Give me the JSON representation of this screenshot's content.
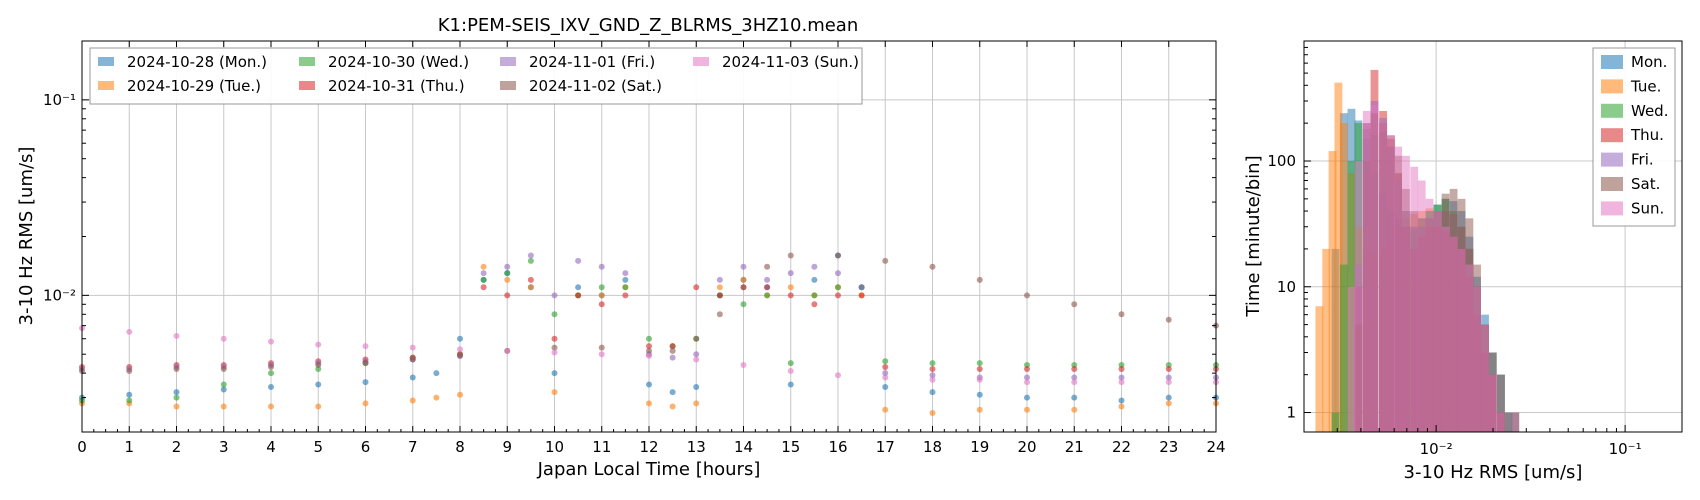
{
  "figure_title": "K1:PEM-SEIS_IXV_GND_Z_BLRMS_3HZ10.mean",
  "colors": {
    "Mon": "#1f77b4",
    "Tue": "#ff7f0e",
    "Wed": "#2ca02c",
    "Thu": "#d62728",
    "Fri": "#9467bd",
    "Sat": "#8c564b",
    "Sun": "#e377c2"
  },
  "chart_data": [
    {
      "type": "scatter",
      "title": "K1:PEM-SEIS_IXV_GND_Z_BLRMS_3HZ10.mean",
      "xlabel": "Japan Local Time [hours]",
      "ylabel": "3-10 Hz RMS [um/s]",
      "xlim": [
        0,
        24
      ],
      "ylim": [
        0.002,
        0.2
      ],
      "yscale": "log",
      "xticks": [
        "0",
        "1",
        "2",
        "3",
        "4",
        "5",
        "6",
        "7",
        "8",
        "9",
        "10",
        "11",
        "12",
        "13",
        "14",
        "15",
        "16",
        "17",
        "18",
        "19",
        "20",
        "21",
        "22",
        "23",
        "24"
      ],
      "yticks": [
        {
          "value": 0.01,
          "label": "10⁻²"
        },
        {
          "value": 0.1,
          "label": "10⁻¹"
        }
      ],
      "grid": true,
      "legend_position": "top-left",
      "series": [
        {
          "name": "2024-10-28 (Mon.)",
          "key": "Mon",
          "x": [
            0,
            1,
            2,
            3,
            4,
            5,
            6,
            7,
            7.5,
            8,
            8.5,
            9,
            9.5,
            10,
            10.5,
            11,
            11.5,
            12,
            12.5,
            13,
            13.5,
            14,
            14.5,
            15,
            15.5,
            16,
            16.5,
            17,
            18,
            19,
            20,
            21,
            22,
            23,
            24
          ],
          "y": [
            0.003,
            0.0031,
            0.0032,
            0.0033,
            0.0034,
            0.0035,
            0.0036,
            0.0038,
            0.004,
            0.006,
            0.012,
            0.013,
            0.011,
            0.004,
            0.011,
            0.01,
            0.012,
            0.0035,
            0.0032,
            0.0034,
            0.01,
            0.012,
            0.011,
            0.0035,
            0.012,
            0.016,
            0.011,
            0.0034,
            0.0032,
            0.0031,
            0.003,
            0.003,
            0.0029,
            0.003,
            0.003
          ]
        },
        {
          "name": "2024-10-29 (Tue.)",
          "key": "Tue",
          "x": [
            0,
            1,
            2,
            3,
            4,
            5,
            6,
            7,
            7.5,
            8,
            8.5,
            9,
            9.5,
            10,
            10.5,
            11,
            11.5,
            12,
            12.5,
            13,
            13.5,
            14,
            14.5,
            15,
            15.5,
            16,
            16.5,
            17,
            18,
            19,
            20,
            21,
            22,
            23,
            24
          ],
          "y": [
            0.0028,
            0.0028,
            0.0027,
            0.0027,
            0.0027,
            0.0027,
            0.0028,
            0.0029,
            0.003,
            0.0031,
            0.014,
            0.012,
            0.011,
            0.0032,
            0.01,
            0.01,
            0.011,
            0.0028,
            0.0027,
            0.0028,
            0.011,
            0.012,
            0.01,
            0.011,
            0.01,
            0.011,
            0.01,
            0.0026,
            0.0025,
            0.0026,
            0.0026,
            0.0026,
            0.0027,
            0.0028,
            0.0028
          ]
        },
        {
          "name": "2024-10-30 (Wed.)",
          "key": "Wed",
          "x": [
            0,
            1,
            2,
            3,
            4,
            5,
            6,
            7,
            8,
            8.5,
            9,
            9.5,
            10,
            10.5,
            11,
            11.5,
            12,
            12.5,
            13,
            13.5,
            14,
            14.5,
            15,
            15.5,
            16,
            16.5,
            17,
            18,
            19,
            20,
            21,
            22,
            23,
            24
          ],
          "y": [
            0.0029,
            0.0029,
            0.003,
            0.0035,
            0.004,
            0.0042,
            0.0045,
            0.0048,
            0.005,
            0.012,
            0.013,
            0.015,
            0.008,
            0.01,
            0.011,
            0.011,
            0.006,
            0.0055,
            0.006,
            0.01,
            0.009,
            0.01,
            0.0045,
            0.01,
            0.011,
            0.011,
            0.0046,
            0.0045,
            0.0045,
            0.0044,
            0.0044,
            0.0044,
            0.0044,
            0.0044
          ]
        },
        {
          "name": "2024-10-31 (Thu.)",
          "key": "Thu",
          "x": [
            0,
            1,
            2,
            3,
            4,
            5,
            6,
            7,
            8,
            8.5,
            9,
            9.5,
            10,
            10.5,
            11,
            11.5,
            12,
            12.5,
            13,
            13.5,
            14,
            14.5,
            15,
            15.5,
            16,
            16.5,
            17,
            18,
            19,
            20,
            21,
            22,
            23,
            24
          ],
          "y": [
            0.0043,
            0.0043,
            0.0044,
            0.0044,
            0.0045,
            0.0046,
            0.0047,
            0.0048,
            0.005,
            0.011,
            0.01,
            0.012,
            0.006,
            0.01,
            0.009,
            0.01,
            0.0055,
            0.0055,
            0.011,
            0.01,
            0.011,
            0.011,
            0.01,
            0.009,
            0.01,
            0.01,
            0.0043,
            0.0042,
            0.0042,
            0.0042,
            0.0042,
            0.0042,
            0.0042,
            0.0042
          ]
        },
        {
          "name": "2024-11-01 (Fri.)",
          "key": "Fri",
          "x": [
            0,
            1,
            2,
            3,
            4,
            5,
            6,
            7,
            8,
            8.5,
            9,
            9.5,
            10,
            10.5,
            11,
            11.5,
            12,
            12.5,
            13,
            13.5,
            14,
            14.5,
            15,
            15.5,
            16,
            16.5,
            17,
            18,
            19,
            20,
            21,
            22,
            23,
            24
          ],
          "y": [
            0.0042,
            0.0042,
            0.0043,
            0.0043,
            0.0044,
            0.0045,
            0.0046,
            0.0047,
            0.0049,
            0.013,
            0.014,
            0.016,
            0.01,
            0.015,
            0.014,
            0.013,
            0.005,
            0.0048,
            0.005,
            0.012,
            0.014,
            0.012,
            0.013,
            0.014,
            0.013,
            0.011,
            0.004,
            0.0039,
            0.0038,
            0.0038,
            0.0038,
            0.0038,
            0.0038,
            0.0038
          ]
        },
        {
          "name": "2024-11-02 (Sat.)",
          "key": "Sat",
          "x": [
            0,
            1,
            2,
            3,
            4,
            5,
            6,
            7,
            8,
            9,
            10,
            11,
            12,
            12.5,
            13,
            13.5,
            14,
            14.5,
            15,
            16,
            17,
            18,
            19,
            20,
            21,
            22,
            23,
            24
          ],
          "y": [
            0.0041,
            0.0041,
            0.0042,
            0.0042,
            0.0043,
            0.0044,
            0.0045,
            0.0047,
            0.0049,
            0.0052,
            0.0054,
            0.0054,
            0.0052,
            0.0052,
            0.006,
            0.008,
            0.011,
            0.014,
            0.016,
            0.016,
            0.015,
            0.014,
            0.012,
            0.01,
            0.009,
            0.008,
            0.0075,
            0.007
          ]
        },
        {
          "name": "2024-11-03 (Sun.)",
          "key": "Sun",
          "x": [
            0,
            1,
            2,
            3,
            4,
            5,
            6,
            7,
            8,
            9,
            10,
            11,
            12,
            13,
            14,
            15,
            16,
            17,
            18,
            19,
            20,
            21,
            22,
            23,
            24
          ],
          "y": [
            0.0068,
            0.0065,
            0.0062,
            0.006,
            0.0058,
            0.0056,
            0.0055,
            0.0054,
            0.0053,
            0.0052,
            0.0051,
            0.005,
            0.0049,
            0.0047,
            0.0044,
            0.0041,
            0.0039,
            0.0038,
            0.0037,
            0.0037,
            0.0036,
            0.0036,
            0.0036,
            0.0036,
            0.0036
          ]
        }
      ]
    },
    {
      "type": "bar",
      "subtype": "histogram",
      "xlabel": "3-10 Hz RMS [um/s]",
      "ylabel": "Time [minute/bin]",
      "xscale": "log",
      "yscale": "log",
      "xlim": [
        0.002,
        0.2
      ],
      "ylim": [
        0.7,
        900
      ],
      "xticks": [
        {
          "value": 0.01,
          "label": "10⁻²"
        },
        {
          "value": 0.1,
          "label": "10⁻¹"
        }
      ],
      "yticks": [
        {
          "value": 1,
          "label": "1"
        },
        {
          "value": 10,
          "label": "10"
        },
        {
          "value": 100,
          "label": "100"
        }
      ],
      "grid": true,
      "legend_position": "top-right",
      "series": [
        {
          "name": "Mon.",
          "key": "Mon",
          "x": [
            0.0028,
            0.0031,
            0.0034,
            0.0037,
            0.0041,
            0.0045,
            0.005,
            0.0055,
            0.006,
            0.0066,
            0.0073,
            0.008,
            0.0088,
            0.0097,
            0.0107,
            0.0118,
            0.013,
            0.0143,
            0.0157,
            0.0173,
            0.019,
            0.021,
            0.023,
            0.025
          ],
          "values": [
            20,
            240,
            260,
            210,
            150,
            80,
            55,
            40,
            35,
            30,
            28,
            30,
            40,
            45,
            50,
            48,
            40,
            25,
            12,
            6,
            3,
            2,
            1,
            1
          ]
        },
        {
          "name": "Tue.",
          "key": "Tue",
          "x": [
            0.0023,
            0.0025,
            0.0027,
            0.0029,
            0.0031,
            0.0034,
            0.0037,
            0.0041,
            0.0045,
            0.005,
            0.0055,
            0.006,
            0.0066,
            0.0073,
            0.008,
            0.0088,
            0.0097,
            0.0107,
            0.0118,
            0.013,
            0.0143,
            0.0157,
            0.0173,
            0.019,
            0.021,
            0.023,
            0.025
          ],
          "values": [
            7,
            20,
            120,
            420,
            200,
            80,
            30,
            20,
            18,
            20,
            25,
            30,
            35,
            38,
            40,
            42,
            40,
            40,
            38,
            30,
            20,
            10,
            5,
            3,
            2,
            1,
            1
          ]
        },
        {
          "name": "Wed.",
          "key": "Wed",
          "x": [
            0.0028,
            0.0031,
            0.0034,
            0.0037,
            0.0041,
            0.0045,
            0.005,
            0.0055,
            0.006,
            0.0066,
            0.0073,
            0.008,
            0.0088,
            0.0097,
            0.0107,
            0.0118,
            0.013,
            0.0143,
            0.0157,
            0.0173,
            0.019,
            0.021,
            0.023
          ],
          "values": [
            1,
            15,
            100,
            200,
            180,
            160,
            170,
            130,
            80,
            40,
            30,
            35,
            40,
            45,
            50,
            40,
            30,
            20,
            10,
            5,
            3,
            2,
            1
          ]
        },
        {
          "name": "Thu.",
          "key": "Thu",
          "x": [
            0.0037,
            0.0041,
            0.0045,
            0.005,
            0.0055,
            0.006,
            0.0066,
            0.0073,
            0.008,
            0.0088,
            0.0097,
            0.0107,
            0.0118,
            0.013,
            0.0143,
            0.0157,
            0.0173,
            0.019,
            0.021
          ],
          "values": [
            10,
            200,
            530,
            250,
            150,
            80,
            30,
            20,
            25,
            30,
            30,
            28,
            25,
            20,
            12,
            6,
            3,
            2,
            1
          ]
        },
        {
          "name": "Fri.",
          "key": "Fri",
          "x": [
            0.0037,
            0.0041,
            0.0045,
            0.005,
            0.0055,
            0.006,
            0.0066,
            0.0073,
            0.008,
            0.0088,
            0.0097,
            0.0107,
            0.0118,
            0.013,
            0.0143,
            0.0157,
            0.0173,
            0.019,
            0.021,
            0.023,
            0.025
          ],
          "values": [
            15,
            200,
            300,
            220,
            130,
            70,
            40,
            30,
            30,
            35,
            40,
            40,
            38,
            30,
            20,
            10,
            5,
            3,
            2,
            1,
            1
          ]
        },
        {
          "name": "Sat.",
          "key": "Sat",
          "x": [
            0.0037,
            0.0041,
            0.0045,
            0.005,
            0.0055,
            0.006,
            0.0066,
            0.0073,
            0.008,
            0.0088,
            0.0097,
            0.0107,
            0.0118,
            0.013,
            0.0143,
            0.0157,
            0.0173,
            0.019,
            0.021
          ],
          "values": [
            5,
            100,
            240,
            200,
            160,
            110,
            60,
            40,
            35,
            35,
            40,
            55,
            60,
            50,
            35,
            15,
            5,
            2,
            1
          ]
        },
        {
          "name": "Sun.",
          "key": "Sun",
          "x": [
            0.0034,
            0.0037,
            0.0041,
            0.0045,
            0.005,
            0.0055,
            0.006,
            0.0066,
            0.0073,
            0.008,
            0.0088,
            0.0097,
            0.0107,
            0.0118,
            0.013,
            0.0143,
            0.0157,
            0.0173,
            0.019,
            0.021
          ],
          "values": [
            10,
            100,
            250,
            280,
            200,
            160,
            130,
            110,
            90,
            70,
            50,
            40,
            30,
            25,
            20,
            15,
            10,
            5,
            2,
            1
          ]
        }
      ]
    }
  ]
}
